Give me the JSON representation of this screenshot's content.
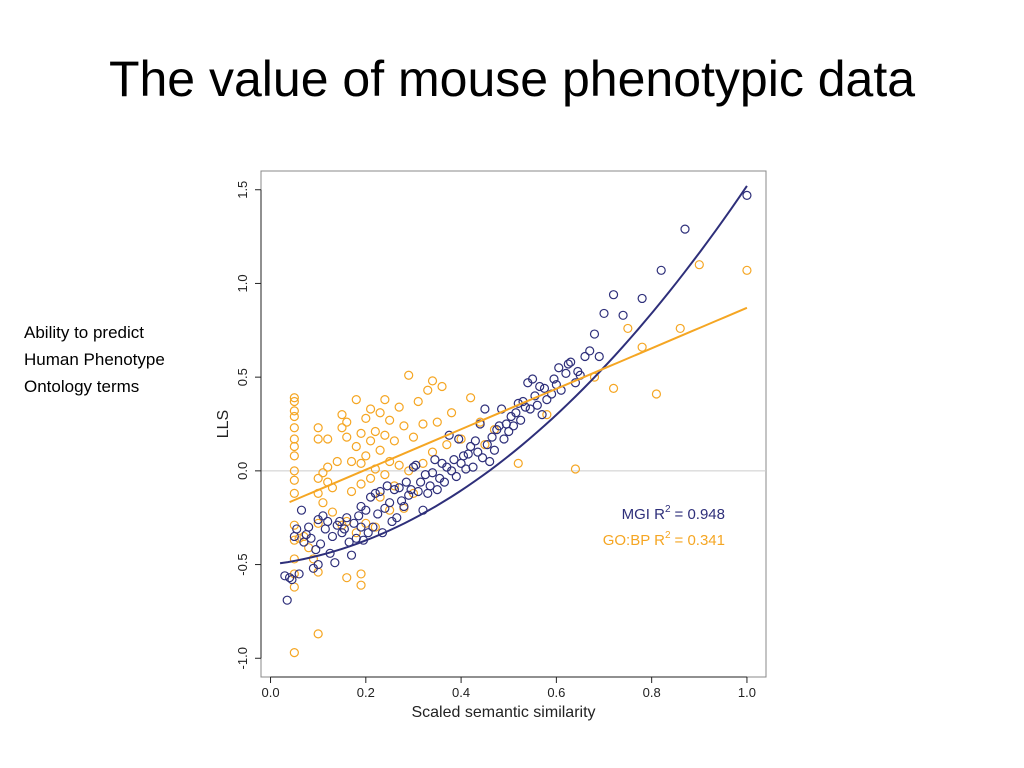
{
  "slide": {
    "title": "The value of mouse phenotypic data",
    "note_lines": [
      "Ability to predict",
      "Human Phenotype",
      "Ontology terms"
    ]
  },
  "chart_data": {
    "type": "scatter",
    "xlabel": "Scaled semantic similarity",
    "ylabel": "LLS",
    "xlim": [
      -0.02,
      1.04
    ],
    "ylim": [
      -1.1,
      1.6
    ],
    "x_ticks": [
      0.0,
      0.2,
      0.4,
      0.6,
      0.8,
      1.0
    ],
    "x_tick_labels": [
      "0.0",
      "0.2",
      "0.4",
      "0.6",
      "0.8",
      "1.0"
    ],
    "y_ticks": [
      -1.0,
      -0.5,
      0.0,
      0.5,
      1.0,
      1.5
    ],
    "y_tick_labels": [
      "-1.0",
      "-0.5",
      "0.0",
      "0.5",
      "1.0",
      "1.5"
    ],
    "reference_line_y": 0.0,
    "grid": false,
    "legend_position": "bottom-right",
    "colors": {
      "mgi": "#2e2f7a",
      "gobp": "#f5a623",
      "reference": "#cccccc",
      "frame": "#888888"
    },
    "series": [
      {
        "name": "MGI",
        "stat_label": "MGI R",
        "stat_sup": "2",
        "stat_value": "= 0.948",
        "marker": "open-circle",
        "fit": {
          "type": "quadratic",
          "x": [
            0.02,
            1.0
          ],
          "coef": [
            -0.5,
            0.3,
            1.72
          ]
        },
        "points": [
          [
            0.03,
            -0.56
          ],
          [
            0.035,
            -0.69
          ],
          [
            0.04,
            -0.57
          ],
          [
            0.045,
            -0.58
          ],
          [
            0.05,
            -0.35
          ],
          [
            0.055,
            -0.31
          ],
          [
            0.06,
            -0.55
          ],
          [
            0.065,
            -0.21
          ],
          [
            0.07,
            -0.38
          ],
          [
            0.075,
            -0.34
          ],
          [
            0.08,
            -0.3
          ],
          [
            0.085,
            -0.36
          ],
          [
            0.09,
            -0.52
          ],
          [
            0.095,
            -0.42
          ],
          [
            0.1,
            -0.5
          ],
          [
            0.1,
            -0.26
          ],
          [
            0.105,
            -0.39
          ],
          [
            0.11,
            -0.24
          ],
          [
            0.115,
            -0.31
          ],
          [
            0.12,
            -0.27
          ],
          [
            0.125,
            -0.44
          ],
          [
            0.13,
            -0.35
          ],
          [
            0.135,
            -0.49
          ],
          [
            0.14,
            -0.29
          ],
          [
            0.145,
            -0.27
          ],
          [
            0.15,
            -0.33
          ],
          [
            0.155,
            -0.31
          ],
          [
            0.16,
            -0.25
          ],
          [
            0.165,
            -0.38
          ],
          [
            0.17,
            -0.45
          ],
          [
            0.175,
            -0.28
          ],
          [
            0.18,
            -0.36
          ],
          [
            0.185,
            -0.24
          ],
          [
            0.19,
            -0.19
          ],
          [
            0.19,
            -0.3
          ],
          [
            0.195,
            -0.37
          ],
          [
            0.2,
            -0.21
          ],
          [
            0.205,
            -0.33
          ],
          [
            0.21,
            -0.14
          ],
          [
            0.215,
            -0.3
          ],
          [
            0.22,
            -0.12
          ],
          [
            0.225,
            -0.23
          ],
          [
            0.23,
            -0.11
          ],
          [
            0.235,
            -0.33
          ],
          [
            0.24,
            -0.2
          ],
          [
            0.245,
            -0.08
          ],
          [
            0.25,
            -0.17
          ],
          [
            0.255,
            -0.27
          ],
          [
            0.26,
            -0.1
          ],
          [
            0.265,
            -0.25
          ],
          [
            0.27,
            -0.09
          ],
          [
            0.275,
            -0.16
          ],
          [
            0.28,
            -0.19
          ],
          [
            0.285,
            -0.06
          ],
          [
            0.29,
            -0.13
          ],
          [
            0.295,
            -0.1
          ],
          [
            0.3,
            0.02
          ],
          [
            0.305,
            0.03
          ],
          [
            0.31,
            -0.11
          ],
          [
            0.315,
            -0.06
          ],
          [
            0.32,
            -0.21
          ],
          [
            0.325,
            -0.02
          ],
          [
            0.33,
            -0.12
          ],
          [
            0.335,
            -0.08
          ],
          [
            0.34,
            -0.01
          ],
          [
            0.345,
            0.06
          ],
          [
            0.35,
            -0.1
          ],
          [
            0.355,
            -0.04
          ],
          [
            0.36,
            0.04
          ],
          [
            0.365,
            -0.06
          ],
          [
            0.37,
            0.02
          ],
          [
            0.375,
            0.19
          ],
          [
            0.38,
            0.0
          ],
          [
            0.385,
            0.06
          ],
          [
            0.39,
            -0.03
          ],
          [
            0.395,
            0.17
          ],
          [
            0.4,
            0.04
          ],
          [
            0.405,
            0.08
          ],
          [
            0.41,
            0.01
          ],
          [
            0.415,
            0.09
          ],
          [
            0.42,
            0.13
          ],
          [
            0.425,
            0.02
          ],
          [
            0.43,
            0.16
          ],
          [
            0.435,
            0.1
          ],
          [
            0.44,
            0.25
          ],
          [
            0.445,
            0.07
          ],
          [
            0.45,
            0.33
          ],
          [
            0.455,
            0.14
          ],
          [
            0.46,
            0.05
          ],
          [
            0.465,
            0.18
          ],
          [
            0.47,
            0.11
          ],
          [
            0.475,
            0.22
          ],
          [
            0.48,
            0.24
          ],
          [
            0.485,
            0.33
          ],
          [
            0.49,
            0.17
          ],
          [
            0.495,
            0.25
          ],
          [
            0.5,
            0.21
          ],
          [
            0.505,
            0.29
          ],
          [
            0.51,
            0.24
          ],
          [
            0.515,
            0.31
          ],
          [
            0.52,
            0.36
          ],
          [
            0.525,
            0.27
          ],
          [
            0.53,
            0.37
          ],
          [
            0.535,
            0.34
          ],
          [
            0.54,
            0.47
          ],
          [
            0.545,
            0.33
          ],
          [
            0.55,
            0.49
          ],
          [
            0.555,
            0.4
          ],
          [
            0.56,
            0.35
          ],
          [
            0.565,
            0.45
          ],
          [
            0.57,
            0.3
          ],
          [
            0.575,
            0.44
          ],
          [
            0.58,
            0.38
          ],
          [
            0.59,
            0.41
          ],
          [
            0.595,
            0.49
          ],
          [
            0.6,
            0.46
          ],
          [
            0.605,
            0.55
          ],
          [
            0.61,
            0.43
          ],
          [
            0.62,
            0.52
          ],
          [
            0.625,
            0.57
          ],
          [
            0.63,
            0.58
          ],
          [
            0.64,
            0.47
          ],
          [
            0.645,
            0.53
          ],
          [
            0.65,
            0.51
          ],
          [
            0.66,
            0.61
          ],
          [
            0.67,
            0.64
          ],
          [
            0.68,
            0.73
          ],
          [
            0.69,
            0.61
          ],
          [
            0.7,
            0.84
          ],
          [
            0.72,
            0.94
          ],
          [
            0.74,
            0.83
          ],
          [
            0.78,
            0.92
          ],
          [
            0.82,
            1.07
          ],
          [
            0.87,
            1.29
          ],
          [
            1.0,
            1.47
          ]
        ]
      },
      {
        "name": "GO:BP",
        "stat_label": "GO:BP R",
        "stat_sup": "2",
        "stat_value": "= 0.341",
        "marker": "open-circle",
        "fit": {
          "type": "linear",
          "x": [
            0.04,
            1.0
          ],
          "coef": [
            -0.21,
            1.08
          ]
        },
        "points": [
          [
            0.05,
            -0.97
          ],
          [
            0.05,
            -0.62
          ],
          [
            0.05,
            -0.55
          ],
          [
            0.05,
            -0.47
          ],
          [
            0.05,
            -0.37
          ],
          [
            0.05,
            -0.29
          ],
          [
            0.05,
            -0.12
          ],
          [
            0.05,
            -0.05
          ],
          [
            0.05,
            0.0
          ],
          [
            0.05,
            0.08
          ],
          [
            0.05,
            0.13
          ],
          [
            0.05,
            0.17
          ],
          [
            0.05,
            0.23
          ],
          [
            0.05,
            0.29
          ],
          [
            0.05,
            0.32
          ],
          [
            0.05,
            0.37
          ],
          [
            0.05,
            0.39
          ],
          [
            0.06,
            -0.36
          ],
          [
            0.07,
            -0.35
          ],
          [
            0.08,
            -0.41
          ],
          [
            0.09,
            -0.47
          ],
          [
            0.1,
            -0.87
          ],
          [
            0.1,
            -0.54
          ],
          [
            0.1,
            -0.28
          ],
          [
            0.1,
            -0.12
          ],
          [
            0.1,
            -0.04
          ],
          [
            0.1,
            0.17
          ],
          [
            0.1,
            0.23
          ],
          [
            0.11,
            -0.17
          ],
          [
            0.11,
            -0.01
          ],
          [
            0.12,
            -0.06
          ],
          [
            0.12,
            0.02
          ],
          [
            0.12,
            0.17
          ],
          [
            0.13,
            -0.22
          ],
          [
            0.13,
            -0.09
          ],
          [
            0.14,
            0.05
          ],
          [
            0.15,
            -0.29
          ],
          [
            0.15,
            0.23
          ],
          [
            0.15,
            0.3
          ],
          [
            0.16,
            -0.57
          ],
          [
            0.16,
            -0.27
          ],
          [
            0.16,
            0.18
          ],
          [
            0.16,
            0.26
          ],
          [
            0.17,
            -0.11
          ],
          [
            0.17,
            0.05
          ],
          [
            0.18,
            -0.33
          ],
          [
            0.18,
            0.13
          ],
          [
            0.18,
            0.38
          ],
          [
            0.19,
            -0.61
          ],
          [
            0.19,
            -0.55
          ],
          [
            0.19,
            -0.07
          ],
          [
            0.19,
            0.04
          ],
          [
            0.19,
            0.2
          ],
          [
            0.2,
            -0.28
          ],
          [
            0.2,
            0.08
          ],
          [
            0.2,
            0.28
          ],
          [
            0.21,
            -0.04
          ],
          [
            0.21,
            0.16
          ],
          [
            0.21,
            0.33
          ],
          [
            0.22,
            -0.3
          ],
          [
            0.22,
            0.01
          ],
          [
            0.22,
            0.21
          ],
          [
            0.23,
            -0.14
          ],
          [
            0.23,
            0.11
          ],
          [
            0.23,
            0.31
          ],
          [
            0.24,
            -0.02
          ],
          [
            0.24,
            0.19
          ],
          [
            0.24,
            0.38
          ],
          [
            0.25,
            -0.21
          ],
          [
            0.25,
            0.05
          ],
          [
            0.25,
            0.27
          ],
          [
            0.26,
            -0.08
          ],
          [
            0.26,
            0.16
          ],
          [
            0.27,
            0.03
          ],
          [
            0.27,
            0.34
          ],
          [
            0.28,
            -0.2
          ],
          [
            0.28,
            0.24
          ],
          [
            0.29,
            0.0
          ],
          [
            0.29,
            0.51
          ],
          [
            0.3,
            -0.12
          ],
          [
            0.3,
            0.18
          ],
          [
            0.31,
            0.37
          ],
          [
            0.32,
            0.04
          ],
          [
            0.32,
            0.25
          ],
          [
            0.33,
            0.43
          ],
          [
            0.34,
            0.1
          ],
          [
            0.34,
            0.48
          ],
          [
            0.35,
            0.26
          ],
          [
            0.36,
            0.45
          ],
          [
            0.37,
            0.14
          ],
          [
            0.38,
            0.31
          ],
          [
            0.4,
            0.17
          ],
          [
            0.42,
            0.39
          ],
          [
            0.44,
            0.26
          ],
          [
            0.45,
            0.14
          ],
          [
            0.47,
            0.22
          ],
          [
            0.52,
            0.04
          ],
          [
            0.58,
            0.3
          ],
          [
            0.64,
            0.01
          ],
          [
            0.68,
            0.5
          ],
          [
            0.72,
            0.44
          ],
          [
            0.75,
            0.76
          ],
          [
            0.78,
            0.66
          ],
          [
            0.81,
            0.41
          ],
          [
            0.86,
            0.76
          ],
          [
            0.9,
            1.1
          ],
          [
            1.0,
            1.07
          ]
        ]
      }
    ]
  }
}
